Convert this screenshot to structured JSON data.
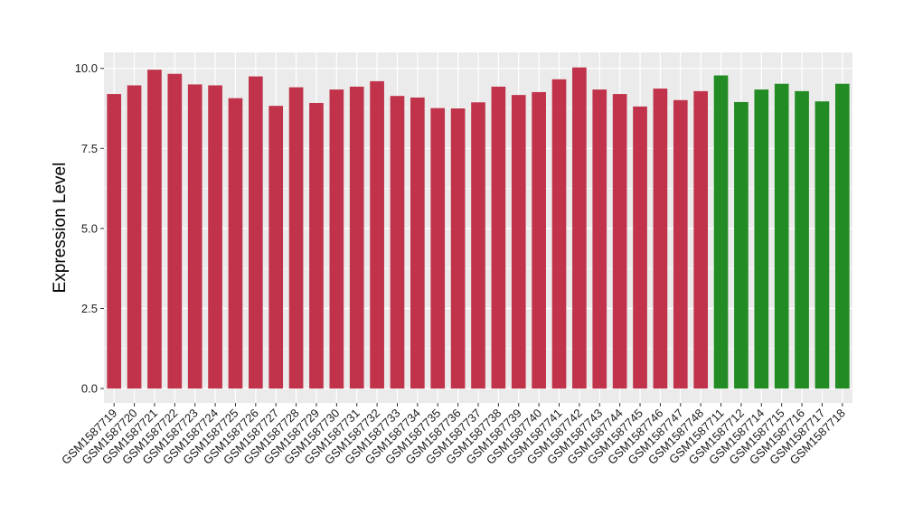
{
  "chart_data": {
    "type": "bar",
    "title": "",
    "xlabel": "",
    "ylabel": "Expression Level",
    "ylim": [
      -0.45,
      10.5
    ],
    "yticks": [
      0.0,
      2.5,
      5.0,
      7.5,
      10.0
    ],
    "ytick_labels": [
      "0.0",
      "2.5",
      "5.0",
      "7.5",
      "10.0"
    ],
    "grid": true,
    "legend": "none",
    "colors": {
      "group_1": "#c0334a",
      "group_2": "#238b23",
      "panel": "#ebebeb",
      "gridline": "#ffffff"
    },
    "categories": [
      "GSM1587719",
      "GSM1587720",
      "GSM1587721",
      "GSM1587722",
      "GSM1587723",
      "GSM1587724",
      "GSM1587725",
      "GSM1587726",
      "GSM1587727",
      "GSM1587728",
      "GSM1587729",
      "GSM1587730",
      "GSM1587731",
      "GSM1587732",
      "GSM1587733",
      "GSM1587734",
      "GSM1587735",
      "GSM1587736",
      "GSM1587737",
      "GSM1587738",
      "GSM1587739",
      "GSM1587740",
      "GSM1587741",
      "GSM1587742",
      "GSM1587743",
      "GSM1587744",
      "GSM1587745",
      "GSM1587746",
      "GSM1587747",
      "GSM1587748",
      "GSM1587711",
      "GSM1587712",
      "GSM1587714",
      "GSM1587715",
      "GSM1587716",
      "GSM1587717",
      "GSM1587718"
    ],
    "values": [
      9.2,
      9.47,
      9.96,
      9.83,
      9.5,
      9.47,
      9.07,
      9.75,
      8.83,
      9.41,
      8.92,
      9.34,
      9.43,
      9.6,
      9.14,
      9.09,
      8.76,
      8.75,
      8.94,
      9.43,
      9.17,
      9.26,
      9.66,
      10.03,
      9.34,
      9.2,
      8.81,
      9.37,
      9.01,
      9.29,
      9.78,
      8.95,
      9.34,
      9.52,
      9.29,
      8.97,
      9.52
    ],
    "group_of_bar": [
      1,
      1,
      1,
      1,
      1,
      1,
      1,
      1,
      1,
      1,
      1,
      1,
      1,
      1,
      1,
      1,
      1,
      1,
      1,
      1,
      1,
      1,
      1,
      1,
      1,
      1,
      1,
      1,
      1,
      1,
      2,
      2,
      2,
      2,
      2,
      2,
      2
    ]
  }
}
